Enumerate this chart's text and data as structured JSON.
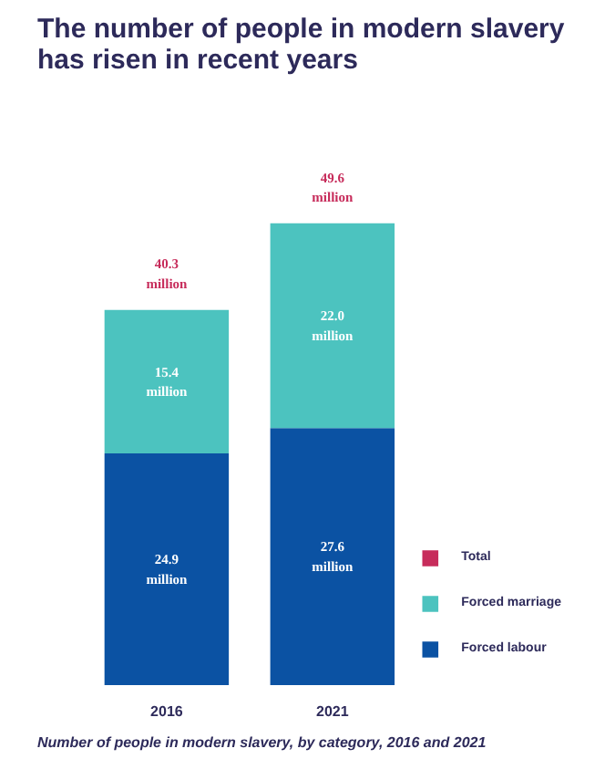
{
  "chart_data": {
    "type": "bar",
    "stacked": true,
    "title": "The number of people in modern slavery has risen in recent years",
    "categories": [
      "2016",
      "2021"
    ],
    "series": [
      {
        "name": "Forced labour",
        "color": "#0b52a3",
        "values": [
          24.9,
          27.6
        ],
        "value_labels": [
          "24.9 million",
          "27.6 million"
        ]
      },
      {
        "name": "Forced marriage",
        "color": "#4cc3bf",
        "values": [
          15.4,
          22.0
        ],
        "value_labels": [
          "15.4 million",
          "22.0 million"
        ]
      },
      {
        "name": "Total",
        "color": "#c72c5b",
        "values": [
          null,
          null
        ]
      }
    ],
    "totals": [
      "40.3 million",
      "49.6 million"
    ],
    "legend": "bottom right",
    "annotations": [
      "Number of people in modern slavery, by category, 2016 and 2021"
    ]
  }
}
